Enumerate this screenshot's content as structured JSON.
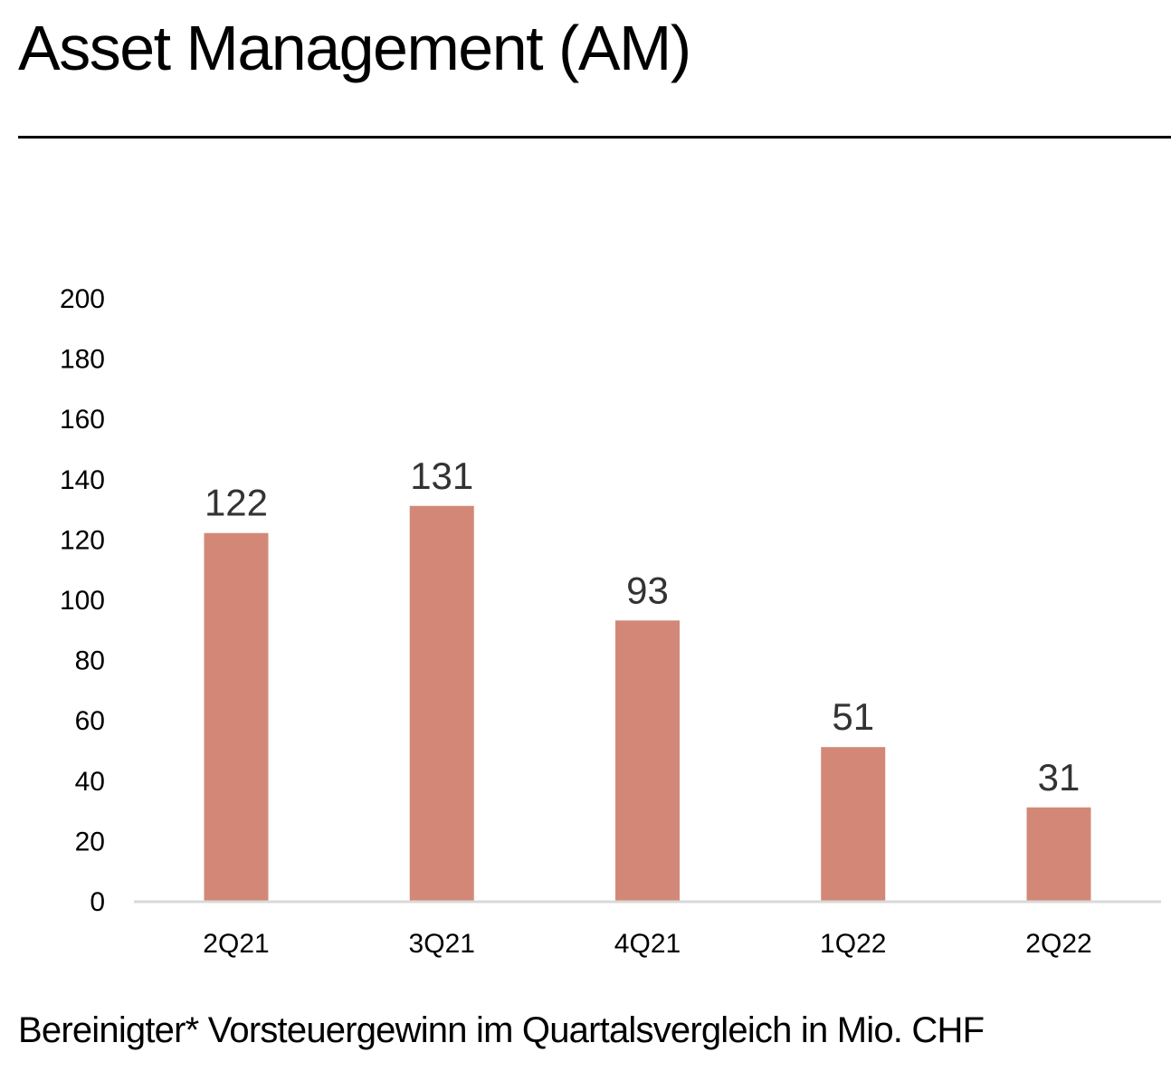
{
  "title": "Asset Management (AM)",
  "caption": "Bereinigter* Vorsteuergewinn im Quartalsvergleich in Mio. CHF",
  "chart_data": {
    "type": "bar",
    "categories": [
      "2Q21",
      "3Q21",
      "4Q21",
      "1Q22",
      "2Q22"
    ],
    "values": [
      122,
      131,
      93,
      51,
      31
    ],
    "data_labels": [
      "122",
      "131",
      "93",
      "51",
      "31"
    ],
    "title": "",
    "xlabel": "",
    "ylabel": "",
    "ylim": [
      0,
      200
    ],
    "yticks": [
      0,
      20,
      40,
      60,
      80,
      100,
      120,
      140,
      160,
      180,
      200
    ],
    "grid": false,
    "legend": "none",
    "bar_color": "#d38877",
    "axis_color": "#d9d9d9"
  }
}
